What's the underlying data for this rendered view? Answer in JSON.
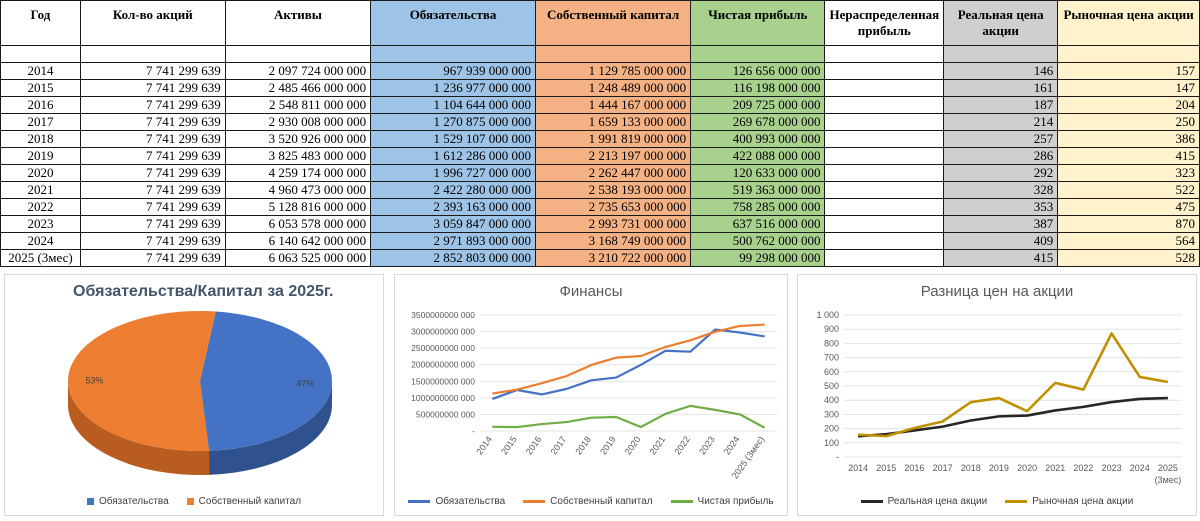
{
  "table": {
    "headers": {
      "year": "Год",
      "shares": "Кол-во акций",
      "assets": "Активы",
      "liabilities": "Обязательства",
      "equity": "Собственный капитал",
      "net_profit": "Чистая прибыль",
      "retained": "Нераспределенная прибыль",
      "real_price": "Реальная цена акции",
      "market_price": "Рыночная цена акции"
    },
    "rows": [
      {
        "year": "2014",
        "shares": "7 741 299 639",
        "assets": "2 097 724 000 000",
        "liabilities": "967 939 000 000",
        "equity": "1 129 785 000 000",
        "net_profit": "126 656 000 000",
        "retained": "",
        "real_price": "146",
        "market_price": "157"
      },
      {
        "year": "2015",
        "shares": "7 741 299 639",
        "assets": "2 485 466 000 000",
        "liabilities": "1 236 977 000 000",
        "equity": "1 248 489 000 000",
        "net_profit": "116 198 000 000",
        "retained": "",
        "real_price": "161",
        "market_price": "147"
      },
      {
        "year": "2016",
        "shares": "7 741 299 639",
        "assets": "2 548 811 000 000",
        "liabilities": "1 104 644 000 000",
        "equity": "1 444 167 000 000",
        "net_profit": "209 725 000 000",
        "retained": "",
        "real_price": "187",
        "market_price": "204"
      },
      {
        "year": "2017",
        "shares": "7 741 299 639",
        "assets": "2 930 008 000 000",
        "liabilities": "1 270 875 000 000",
        "equity": "1 659 133 000 000",
        "net_profit": "269 678 000 000",
        "retained": "",
        "real_price": "214",
        "market_price": "250"
      },
      {
        "year": "2018",
        "shares": "7 741 299 639",
        "assets": "3 520 926 000 000",
        "liabilities": "1 529 107 000 000",
        "equity": "1 991 819 000 000",
        "net_profit": "400 993 000 000",
        "retained": "",
        "real_price": "257",
        "market_price": "386"
      },
      {
        "year": "2019",
        "shares": "7 741 299 639",
        "assets": "3 825 483 000 000",
        "liabilities": "1 612 286 000 000",
        "equity": "2 213 197 000 000",
        "net_profit": "422 088 000 000",
        "retained": "",
        "real_price": "286",
        "market_price": "415"
      },
      {
        "year": "2020",
        "shares": "7 741 299 639",
        "assets": "4 259 174 000 000",
        "liabilities": "1 996 727 000 000",
        "equity": "2 262 447 000 000",
        "net_profit": "120 633 000 000",
        "retained": "",
        "real_price": "292",
        "market_price": "323"
      },
      {
        "year": "2021",
        "shares": "7 741 299 639",
        "assets": "4 960 473 000 000",
        "liabilities": "2 422 280 000 000",
        "equity": "2 538 193 000 000",
        "net_profit": "519 363 000 000",
        "retained": "",
        "real_price": "328",
        "market_price": "522"
      },
      {
        "year": "2022",
        "shares": "7 741 299 639",
        "assets": "5 128 816 000 000",
        "liabilities": "2 393 163 000 000",
        "equity": "2 735 653 000 000",
        "net_profit": "758 285 000 000",
        "retained": "",
        "real_price": "353",
        "market_price": "475"
      },
      {
        "year": "2023",
        "shares": "7 741 299 639",
        "assets": "6 053 578 000 000",
        "liabilities": "3 059 847 000 000",
        "equity": "2 993 731 000 000",
        "net_profit": "637 516 000 000",
        "retained": "",
        "real_price": "387",
        "market_price": "870"
      },
      {
        "year": "2024",
        "shares": "7 741 299 639",
        "assets": "6 140 642 000 000",
        "liabilities": "2 971 893 000 000",
        "equity": "3 168 749 000 000",
        "net_profit": "500 762 000 000",
        "retained": "",
        "real_price": "409",
        "market_price": "564"
      },
      {
        "year": "2025 (3мес)",
        "shares": "7 741 299 639",
        "assets": "6 063 525 000 000",
        "liabilities": "2 852 803 000 000",
        "equity": "3 210 722 000 000",
        "net_profit": "99 298 000 000",
        "retained": "",
        "real_price": "415",
        "market_price": "528"
      }
    ],
    "column_colors": {
      "liabilities": "#9dc3e6",
      "equity": "#f4b183",
      "net_profit": "#a9d18e",
      "real_price": "#d0cece",
      "market_price": "#fff2cc"
    }
  },
  "chart_data": [
    {
      "type": "pie",
      "title": "Обязательства/Капитал за 2025г.",
      "slices": [
        {
          "name": "Обязательства",
          "value": 47,
          "label": "47%",
          "color": "#4472c4"
        },
        {
          "name": "Собственный капитал",
          "value": 53,
          "label": "53%",
          "color": "#ed7d31"
        }
      ],
      "legend": "bottom"
    },
    {
      "type": "line",
      "title": "Финансы",
      "categories": [
        "2014",
        "2015",
        "2016",
        "2017",
        "2018",
        "2019",
        "2020",
        "2021",
        "2022",
        "2023",
        "2024",
        "2025 (3мес)"
      ],
      "y_ticks": [
        "-",
        "500000000 000",
        "1000000000 000",
        "1500000000 000",
        "2000000000 000",
        "2500000000 000",
        "3000000000 000",
        "3500000000 000"
      ],
      "ylim": [
        0,
        3500000000000
      ],
      "series": [
        {
          "name": "Обязательства",
          "color": "#4472c4",
          "values": [
            967939000000,
            1236977000000,
            1104644000000,
            1270875000000,
            1529107000000,
            1612286000000,
            1996727000000,
            2422280000000,
            2393163000000,
            3059847000000,
            2971893000000,
            2852803000000
          ]
        },
        {
          "name": "Собственный капитал",
          "color": "#ed7d31",
          "values": [
            1129785000000,
            1248489000000,
            1444167000000,
            1659133000000,
            1991819000000,
            2213197000000,
            2262447000000,
            2538193000000,
            2735653000000,
            2993731000000,
            3168749000000,
            3210722000000
          ]
        },
        {
          "name": "Чистая прибыль",
          "color": "#70ad47",
          "values": [
            126656000000,
            116198000000,
            209725000000,
            269678000000,
            400993000000,
            422088000000,
            120633000000,
            519363000000,
            758285000000,
            637516000000,
            500762000000,
            99298000000
          ]
        }
      ],
      "grid": true,
      "legend": "bottom"
    },
    {
      "type": "line",
      "title": "Разница цен на акции",
      "categories": [
        "2014",
        "2015",
        "2016",
        "2017",
        "2018",
        "2019",
        "2020",
        "2021",
        "2022",
        "2023",
        "2024",
        "2025"
      ],
      "category_sublabel": "(3мес)",
      "y_ticks": [
        "-",
        "100",
        "200",
        "300",
        "400",
        "500",
        "600",
        "700",
        "800",
        "900",
        "1 000"
      ],
      "ylim": [
        0,
        1000
      ],
      "series": [
        {
          "name": "Реальная цена акции",
          "color": "#262626",
          "values": [
            146,
            161,
            187,
            214,
            257,
            286,
            292,
            328,
            353,
            387,
            409,
            415
          ]
        },
        {
          "name": "Рыночная цена акции",
          "color": "#bf9000",
          "values": [
            157,
            147,
            204,
            250,
            386,
            415,
            323,
            522,
            475,
            870,
            564,
            528
          ]
        }
      ],
      "grid": true,
      "legend": "bottom"
    }
  ]
}
